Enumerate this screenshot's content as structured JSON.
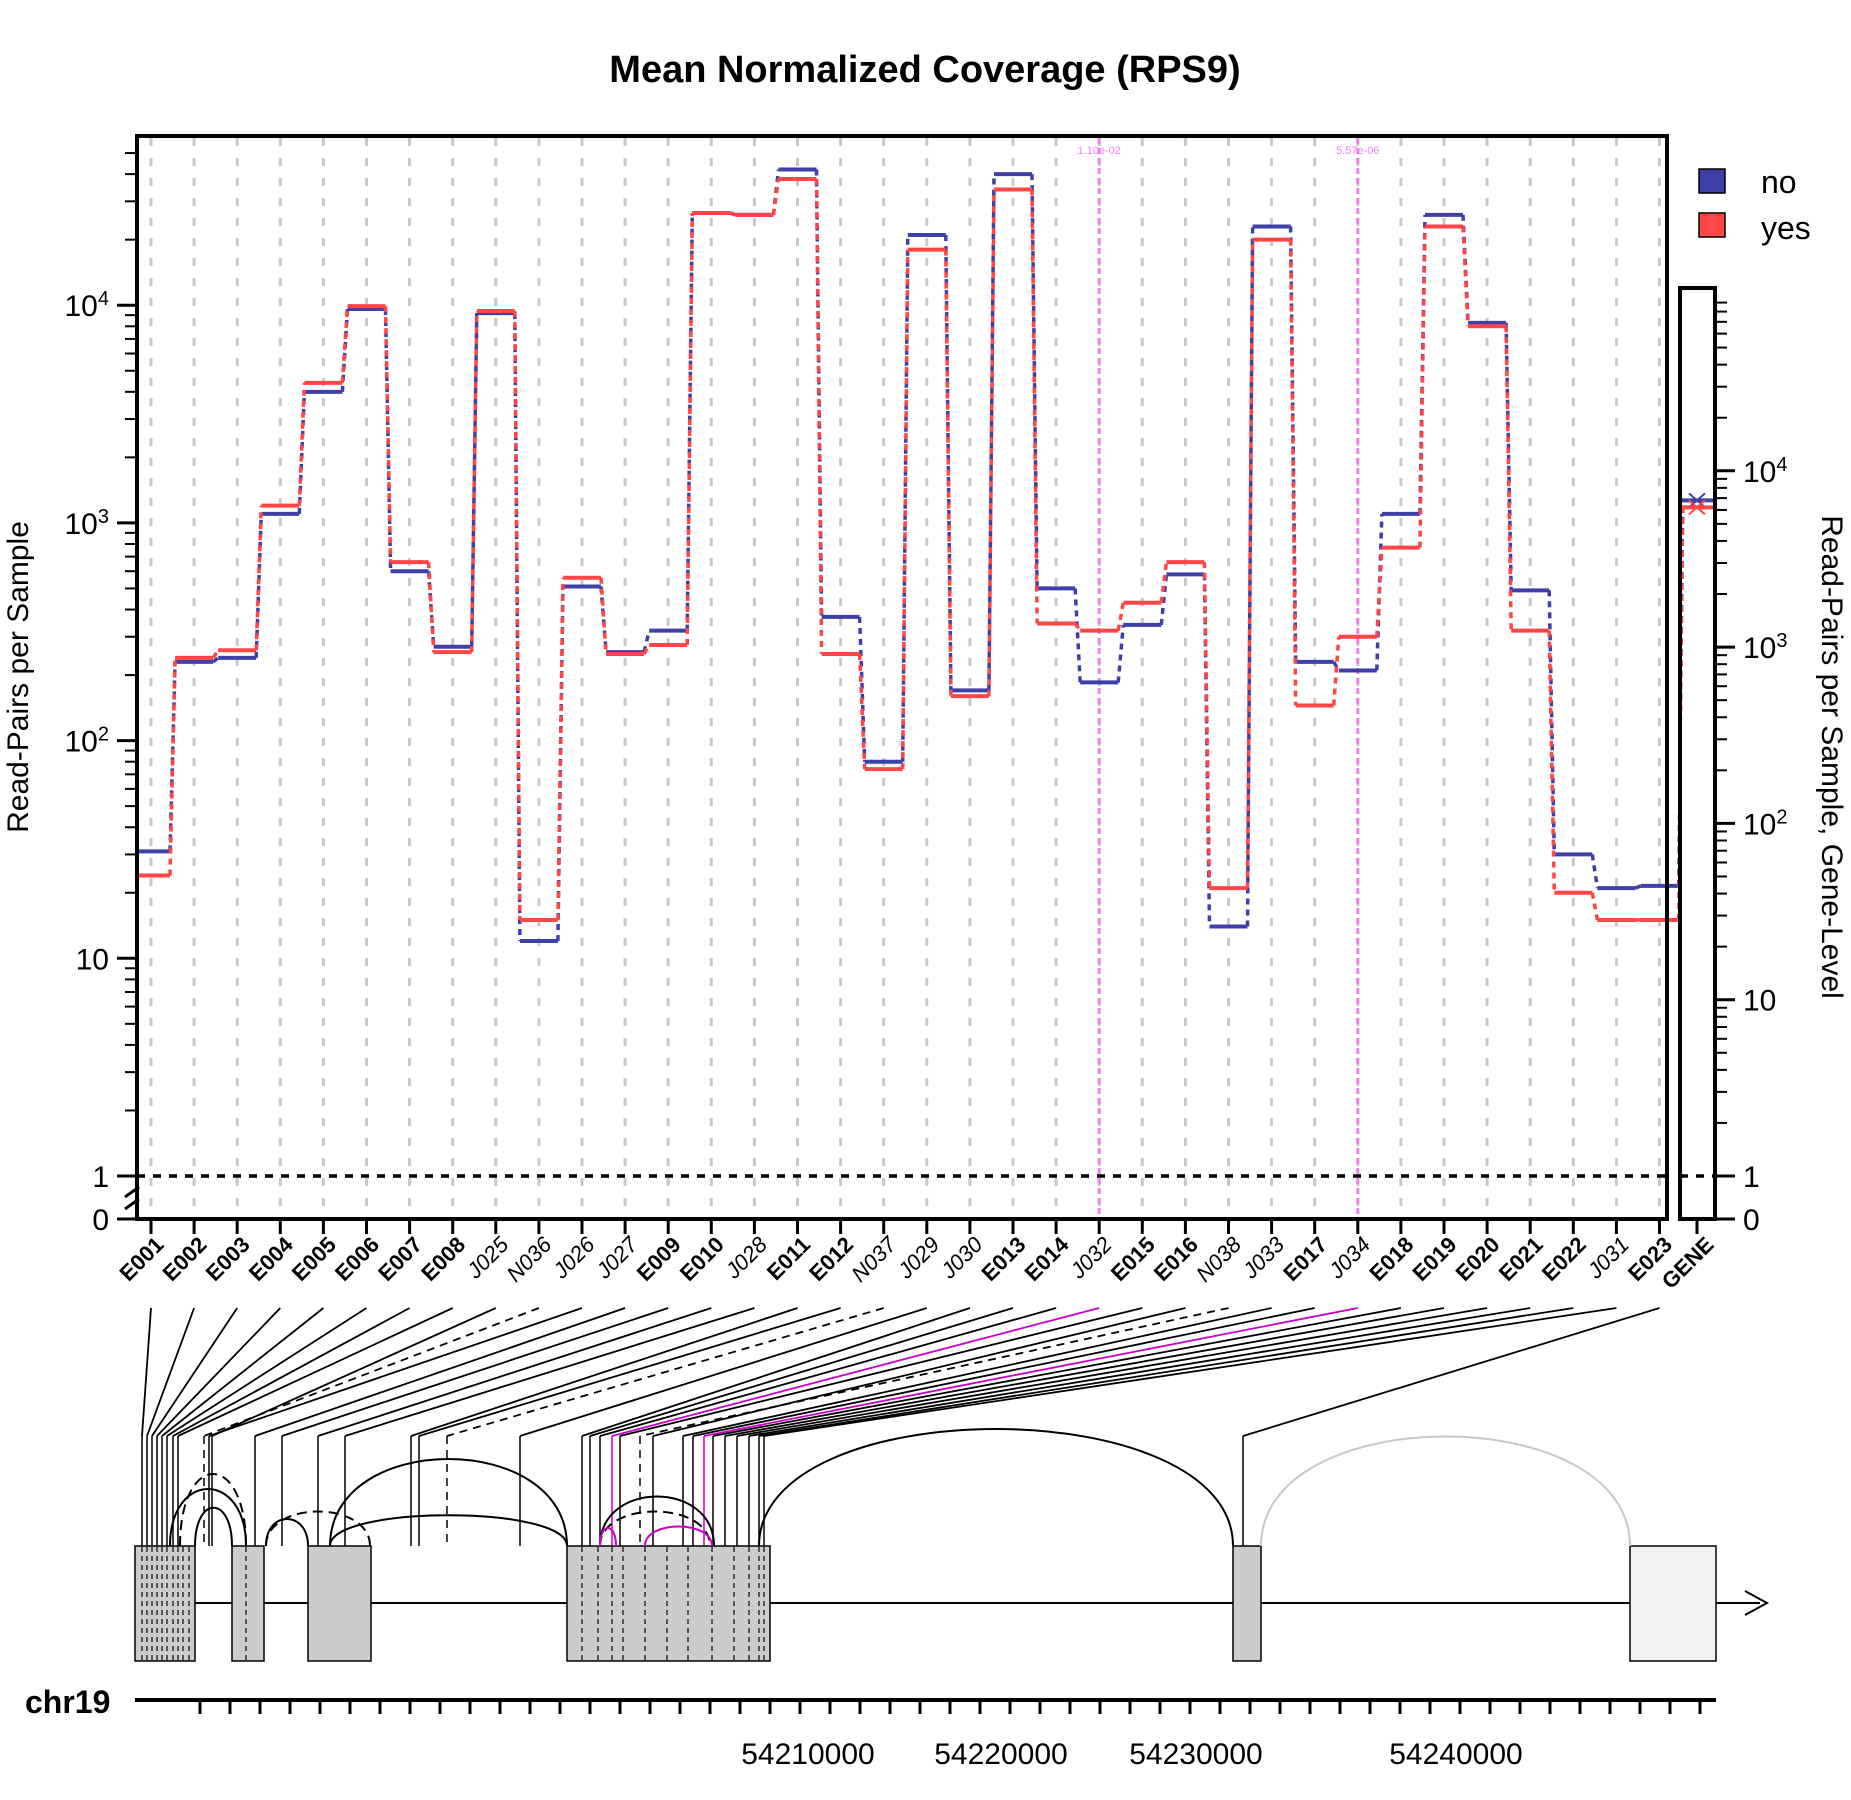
{
  "chart_data": {
    "type": "line",
    "title": "Mean Normalized Coverage (RPS9)",
    "ylabel": "Read-Pairs per Sample",
    "ylabel_right": "Read-Pairs per Sample, Gene-Level",
    "y_scale": "log",
    "ylim": [
      0,
      70000
    ],
    "y_ticks": [
      "0",
      "1",
      "10",
      "10^2",
      "10^3",
      "10^4"
    ],
    "y_ticks_right": [
      "0",
      "1",
      "10",
      "10^2",
      "10^3",
      "10^4"
    ],
    "legend_position": "top-right",
    "features": [
      {
        "id": "E001",
        "type": "exon"
      },
      {
        "id": "E002",
        "type": "exon"
      },
      {
        "id": "E003",
        "type": "exon"
      },
      {
        "id": "E004",
        "type": "exon"
      },
      {
        "id": "E005",
        "type": "exon"
      },
      {
        "id": "E006",
        "type": "exon"
      },
      {
        "id": "E007",
        "type": "exon"
      },
      {
        "id": "E008",
        "type": "exon"
      },
      {
        "id": "J025",
        "type": "junction"
      },
      {
        "id": "N036",
        "type": "junction"
      },
      {
        "id": "J026",
        "type": "junction"
      },
      {
        "id": "J027",
        "type": "junction"
      },
      {
        "id": "E009",
        "type": "exon"
      },
      {
        "id": "E010",
        "type": "exon"
      },
      {
        "id": "J028",
        "type": "junction"
      },
      {
        "id": "E011",
        "type": "exon"
      },
      {
        "id": "E012",
        "type": "exon"
      },
      {
        "id": "N037",
        "type": "junction"
      },
      {
        "id": "J029",
        "type": "junction"
      },
      {
        "id": "J030",
        "type": "junction"
      },
      {
        "id": "E013",
        "type": "exon"
      },
      {
        "id": "E014",
        "type": "exon"
      },
      {
        "id": "J032",
        "type": "junction"
      },
      {
        "id": "E015",
        "type": "exon"
      },
      {
        "id": "E016",
        "type": "exon"
      },
      {
        "id": "N038",
        "type": "junction"
      },
      {
        "id": "J033",
        "type": "junction"
      },
      {
        "id": "E017",
        "type": "exon"
      },
      {
        "id": "J034",
        "type": "junction"
      },
      {
        "id": "E018",
        "type": "exon"
      },
      {
        "id": "E019",
        "type": "exon"
      },
      {
        "id": "E020",
        "type": "exon"
      },
      {
        "id": "E021",
        "type": "exon"
      },
      {
        "id": "E022",
        "type": "exon"
      },
      {
        "id": "J031",
        "type": "junction"
      },
      {
        "id": "E023",
        "type": "exon"
      }
    ],
    "gene_label": "GENE",
    "series": [
      {
        "name": "no",
        "color": "#3f3fa8",
        "values": [
          31,
          230,
          240,
          1100,
          4000,
          9600,
          600,
          270,
          9200,
          12,
          510,
          255,
          320,
          26500,
          26000,
          42000,
          370,
          80,
          21000,
          170,
          40000,
          500,
          185,
          340,
          580,
          14,
          23000,
          230,
          210,
          1100,
          26000,
          8300,
          490,
          30,
          21,
          21.5
        ],
        "gene_level": 6800
      },
      {
        "name": "yes",
        "color": "#ff4545",
        "values": [
          24,
          240,
          260,
          1200,
          4400,
          9900,
          660,
          255,
          9400,
          15,
          560,
          250,
          275,
          26500,
          26000,
          38000,
          250,
          74,
          18000,
          160,
          34000,
          345,
          320,
          430,
          660,
          21,
          20000,
          145,
          300,
          770,
          23000,
          8000,
          320,
          20,
          15,
          15
        ],
        "gene_level": 6200
      }
    ],
    "significant_features": [
      {
        "feature": "J032",
        "p_label": "1.10e-02"
      },
      {
        "feature": "J034",
        "p_label": "5.57e-06"
      }
    ],
    "reference_line": 1,
    "chromosome": "chr19",
    "x_ticks": [
      "54210000",
      "54220000",
      "54230000",
      "54240000"
    ]
  }
}
